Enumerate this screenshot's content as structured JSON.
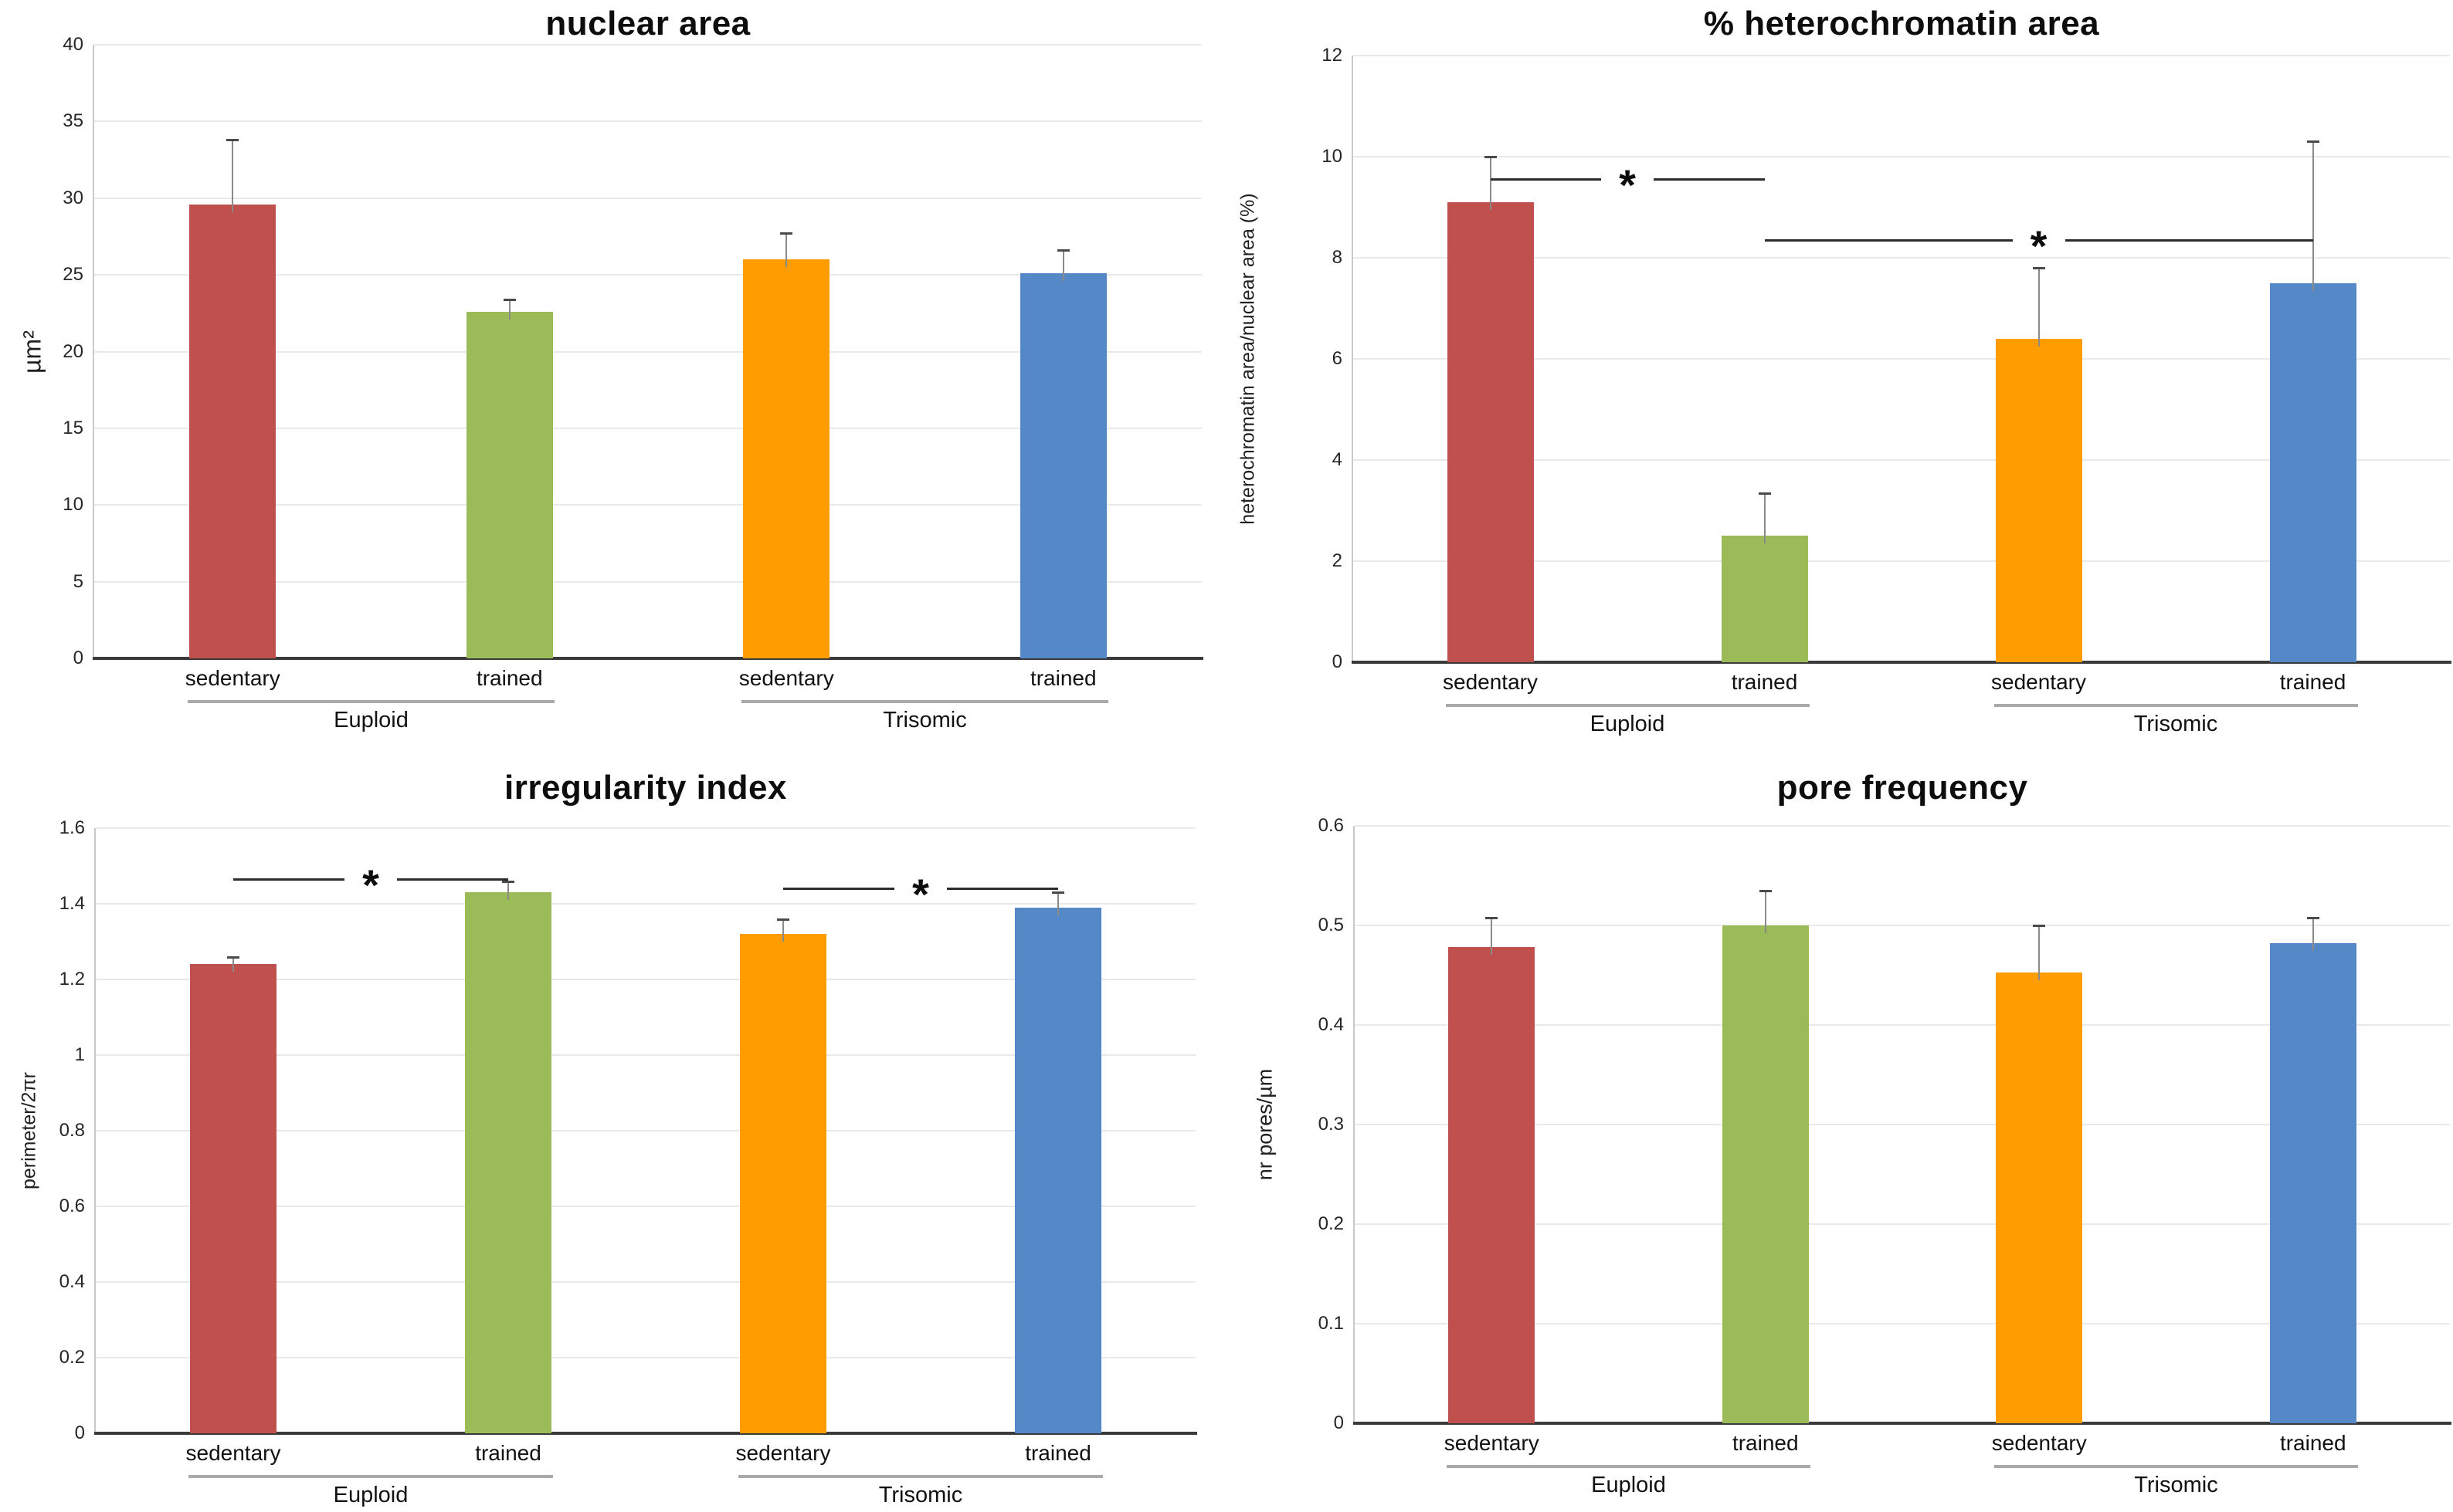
{
  "figure": {
    "background": "#ffffff",
    "rows": 2,
    "columns": 2
  },
  "palette": {
    "euploid_sedentary": "#C0504D",
    "euploid_trained": "#9BBB59",
    "trisomic_sedentary": "#FF9C00",
    "trisomic_trained": "#5588C7",
    "gridline": "#E9E9E9",
    "y_axis_line": "#C9C9C9",
    "x_axis_line": "#3A3A3A",
    "error_bar": "#8A8A8A",
    "error_bar_cap": "#4A4A4A",
    "significance_line": "#2D2D2D",
    "tick_text": "#262626",
    "label_text": "#111111",
    "group_underline": "#A9A9A9"
  },
  "chart_data": [
    {
      "id": "nuclear-area",
      "type": "bar",
      "title": "nuclear area",
      "ylabel": "µm²",
      "ylim": [
        0,
        40
      ],
      "ytick_values": [
        0,
        5,
        10,
        15,
        20,
        25,
        30,
        35,
        40
      ],
      "ytick_labels": [
        "0",
        "5",
        "10",
        "15",
        "20",
        "25",
        "30",
        "35",
        "40"
      ],
      "grid": true,
      "legend": "none",
      "categories": [
        "sedentary",
        "trained",
        "sedentary",
        "trained"
      ],
      "group_labels": [
        "Euploid",
        "Trisomic"
      ],
      "bars": [
        {
          "group": "Euploid",
          "condition": "sedentary",
          "color": "#C0504D",
          "value": 29.6,
          "error_top": 33.8
        },
        {
          "group": "Euploid",
          "condition": "trained",
          "color": "#9BBB59",
          "value": 22.6,
          "error_top": 23.4
        },
        {
          "group": "Trisomic",
          "condition": "sedentary",
          "color": "#FF9C00",
          "value": 26.0,
          "error_top": 27.7
        },
        {
          "group": "Trisomic",
          "condition": "trained",
          "color": "#5588C7",
          "value": 25.1,
          "error_top": 26.6
        }
      ],
      "significance": []
    },
    {
      "id": "heterochromatin-area",
      "type": "bar",
      "title": "% heterochromatin area",
      "ylabel": "heterochromatin area/nuclear area (%)",
      "ylim": [
        0,
        12
      ],
      "ytick_values": [
        0,
        2,
        4,
        6,
        8,
        10,
        12
      ],
      "ytick_labels": [
        "0",
        "2",
        "4",
        "6",
        "8",
        "10",
        "12"
      ],
      "grid": true,
      "legend": "none",
      "categories": [
        "sedentary",
        "trained",
        "sedentary",
        "trained"
      ],
      "group_labels": [
        "Euploid",
        "Trisomic"
      ],
      "bars": [
        {
          "group": "Euploid",
          "condition": "sedentary",
          "color": "#C0504D",
          "value": 9.1,
          "error_top": 10.0
        },
        {
          "group": "Euploid",
          "condition": "trained",
          "color": "#9BBB59",
          "value": 2.5,
          "error_top": 3.35
        },
        {
          "group": "Trisomic",
          "condition": "sedentary",
          "color": "#FF9C00",
          "value": 6.4,
          "error_top": 7.8
        },
        {
          "group": "Trisomic",
          "condition": "trained",
          "color": "#5588C7",
          "value": 7.5,
          "error_top": 10.3
        }
      ],
      "significance": [
        {
          "from_bar": 0,
          "to_bar": 1,
          "y": 9.55,
          "label": "*"
        },
        {
          "from_bar": 1,
          "to_bar": 3,
          "y": 8.35,
          "label": "*"
        }
      ]
    },
    {
      "id": "irregularity-index",
      "type": "bar",
      "title": "irregularity index",
      "ylabel": "perimeter/2πr",
      "ylim": [
        0,
        1.6
      ],
      "ytick_values": [
        0,
        0.2,
        0.4,
        0.6,
        0.8,
        1,
        1.2,
        1.4,
        1.6
      ],
      "ytick_labels": [
        "0",
        "0.2",
        "0.4",
        "0.6",
        "0.8",
        "1",
        "1.2",
        "1.4",
        "1.6"
      ],
      "grid": true,
      "legend": "none",
      "categories": [
        "sedentary",
        "trained",
        "sedentary",
        "trained"
      ],
      "group_labels": [
        "Euploid",
        "Trisomic"
      ],
      "bars": [
        {
          "group": "Euploid",
          "condition": "sedentary",
          "color": "#C0504D",
          "value": 1.24,
          "error_top": 1.26
        },
        {
          "group": "Euploid",
          "condition": "trained",
          "color": "#9BBB59",
          "value": 1.43,
          "error_top": 1.46
        },
        {
          "group": "Trisomic",
          "condition": "sedentary",
          "color": "#FF9C00",
          "value": 1.32,
          "error_top": 1.36
        },
        {
          "group": "Trisomic",
          "condition": "trained",
          "color": "#5588C7",
          "value": 1.39,
          "error_top": 1.43
        }
      ],
      "significance": [
        {
          "from_bar": 0,
          "to_bar": 1,
          "y": 1.465,
          "label": "*"
        },
        {
          "from_bar": 2,
          "to_bar": 3,
          "y": 1.44,
          "label": "*"
        }
      ]
    },
    {
      "id": "pore-frequency",
      "type": "bar",
      "title": "pore frequency",
      "ylabel": "nr pores/µm",
      "ylim": [
        0,
        0.6
      ],
      "ytick_values": [
        0,
        0.1,
        0.2,
        0.3,
        0.4,
        0.5,
        0.6
      ],
      "ytick_labels": [
        "0",
        "0.1",
        "0.2",
        "0.3",
        "0.4",
        "0.5",
        "0.6"
      ],
      "grid": true,
      "legend": "none",
      "categories": [
        "sedentary",
        "trained",
        "sedentary",
        "trained"
      ],
      "group_labels": [
        "Euploid",
        "Trisomic"
      ],
      "bars": [
        {
          "group": "Euploid",
          "condition": "sedentary",
          "color": "#C0504D",
          "value": 0.478,
          "error_top": 0.508
        },
        {
          "group": "Euploid",
          "condition": "trained",
          "color": "#9BBB59",
          "value": 0.5,
          "error_top": 0.535
        },
        {
          "group": "Trisomic",
          "condition": "sedentary",
          "color": "#FF9C00",
          "value": 0.453,
          "error_top": 0.5
        },
        {
          "group": "Trisomic",
          "condition": "trained",
          "color": "#5588C7",
          "value": 0.482,
          "error_top": 0.508
        }
      ],
      "significance": []
    }
  ]
}
